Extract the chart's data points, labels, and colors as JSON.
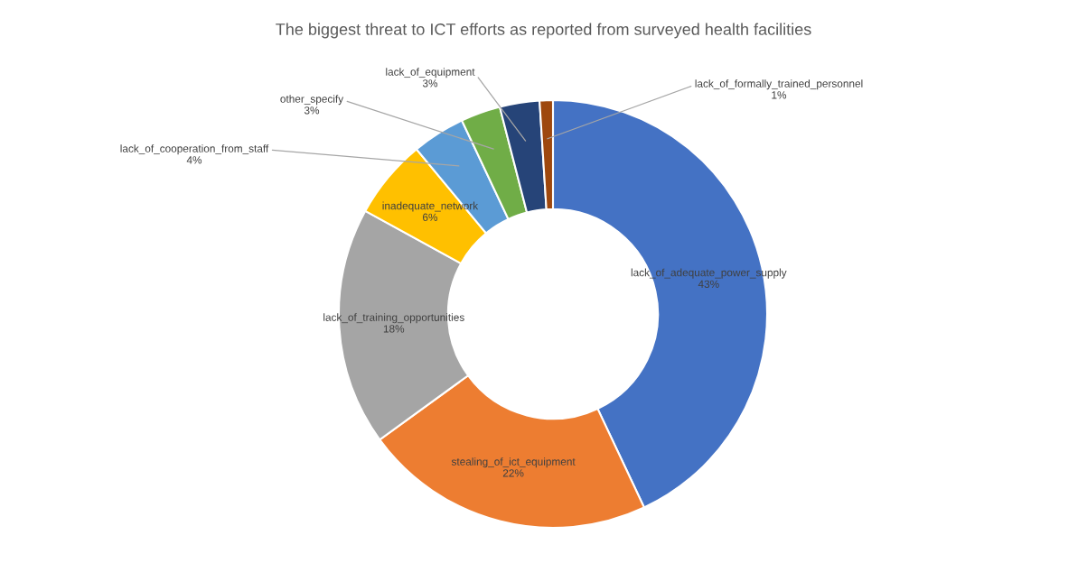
{
  "chart_data": {
    "type": "donut",
    "title": "The biggest threat to ICT efforts as reported from surveyed health facilities",
    "categories": [
      "lack_of_adequate_power_supply",
      "stealing_of_ict_equipment",
      "lack_of_training_opportunities",
      "inadequate_network",
      "lack_of_cooperation_from_staff",
      "other_specify",
      "lack_of_equipment",
      "lack_of_formally_trained_personnel"
    ],
    "values": [
      43,
      22,
      18,
      6,
      4,
      3,
      3,
      1
    ],
    "colors": [
      "#4472c4",
      "#ed7d31",
      "#a5a5a5",
      "#ffc000",
      "#5b9bd5",
      "#70ad47",
      "#264478",
      "#9e480e"
    ],
    "value_labels": [
      "43%",
      "22%",
      "18%",
      "6%",
      "4%",
      "3%",
      "3%",
      "1%"
    ],
    "data_labels": true,
    "legend": false
  }
}
